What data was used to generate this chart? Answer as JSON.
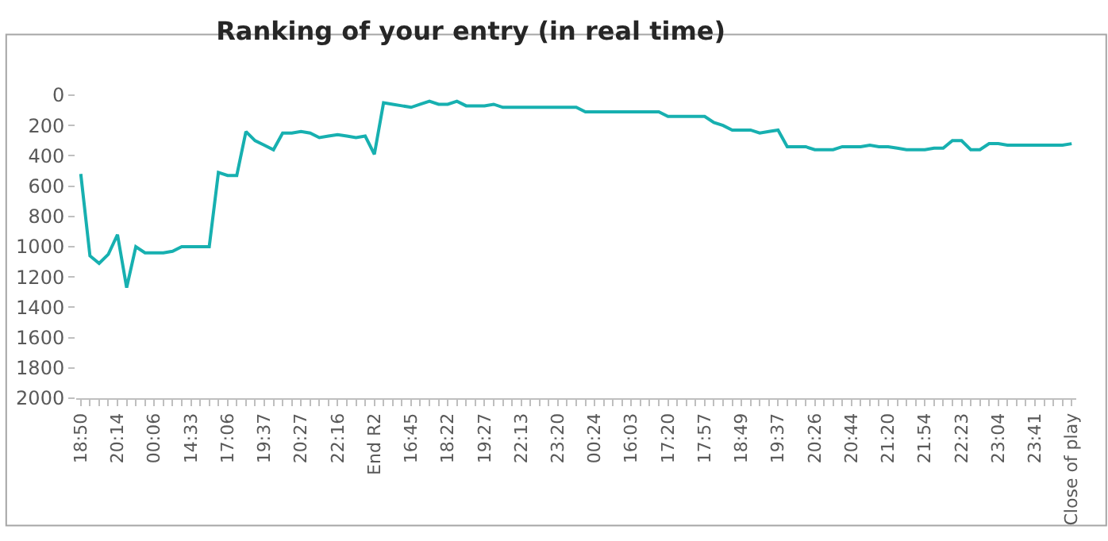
{
  "chart_data": {
    "type": "line",
    "title": "Ranking of your entry (in real time)",
    "categories": [
      "18:50",
      null,
      null,
      null,
      "20:14",
      null,
      null,
      null,
      "00:06",
      null,
      null,
      null,
      "14:33",
      null,
      null,
      null,
      "17:06",
      null,
      null,
      null,
      "19:37",
      null,
      null,
      null,
      "20:27",
      null,
      null,
      null,
      "22:16",
      null,
      null,
      null,
      "End R2",
      null,
      null,
      null,
      "16:45",
      null,
      null,
      null,
      "18:22",
      null,
      null,
      null,
      "19:27",
      null,
      null,
      null,
      "22:13",
      null,
      null,
      null,
      "23:20",
      null,
      null,
      null,
      "00:24",
      null,
      null,
      null,
      "16:03",
      null,
      null,
      null,
      "17:20",
      null,
      null,
      null,
      "17:57",
      null,
      null,
      null,
      "18:49",
      null,
      null,
      null,
      "19:37",
      null,
      null,
      null,
      "20:26",
      null,
      null,
      null,
      "20:44",
      null,
      null,
      null,
      "21:20",
      null,
      null,
      null,
      "21:54",
      null,
      null,
      null,
      "22:23",
      null,
      null,
      null,
      "23:04",
      null,
      null,
      null,
      "23:41",
      null,
      null,
      null,
      "Close of play"
    ],
    "series": [
      {
        "color": "#17b0b0",
        "values": [
          520,
          1060,
          1110,
          1050,
          920,
          1270,
          1000,
          1040,
          1040,
          1040,
          1030,
          1000,
          1000,
          1000,
          1000,
          510,
          530,
          530,
          240,
          300,
          330,
          360,
          250,
          250,
          240,
          250,
          280,
          270,
          260,
          270,
          280,
          270,
          390,
          50,
          60,
          70,
          80,
          60,
          40,
          60,
          60,
          40,
          70,
          70,
          70,
          60,
          80,
          80,
          80,
          80,
          80,
          80,
          80,
          80,
          80,
          110,
          110,
          110,
          110,
          110,
          110,
          110,
          110,
          110,
          140,
          140,
          140,
          140,
          140,
          180,
          200,
          230,
          230,
          230,
          250,
          240,
          230,
          340,
          340,
          340,
          360,
          360,
          360,
          340,
          340,
          340,
          330,
          340,
          340,
          350,
          360,
          360,
          360,
          350,
          350,
          300,
          300,
          360,
          360,
          320,
          320,
          330,
          330,
          330,
          330,
          330,
          330,
          330,
          320
        ]
      }
    ],
    "ylim": [
      2000,
      0
    ],
    "yticks": [
      0,
      200,
      400,
      600,
      800,
      1000,
      1200,
      1400,
      1600,
      1800,
      2000
    ],
    "marker": "none",
    "line_style": "solid"
  }
}
